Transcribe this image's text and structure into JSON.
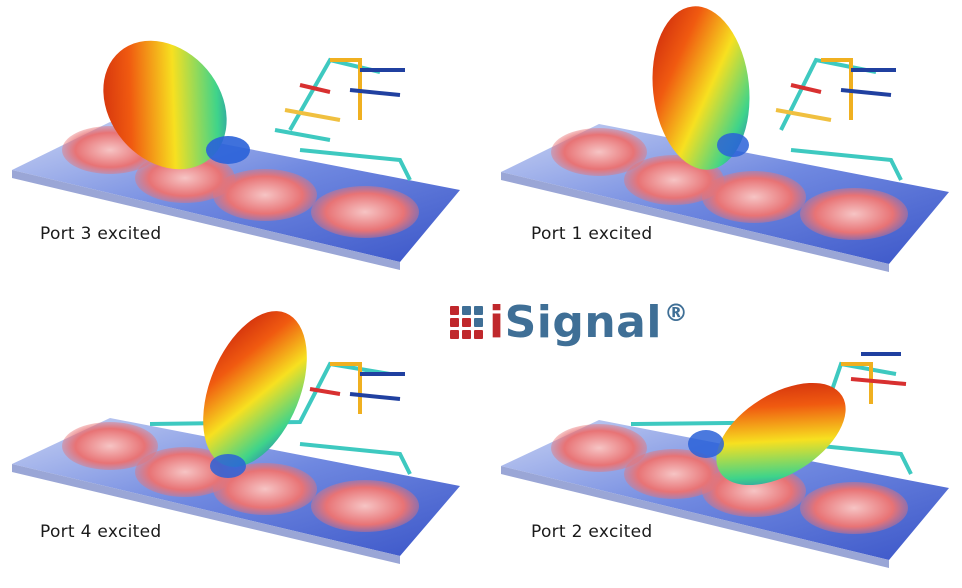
{
  "panels": [
    {
      "id": "port-3",
      "caption": "Port 3 excited"
    },
    {
      "id": "port-1",
      "caption": "Port 1 excited"
    },
    {
      "id": "port-4",
      "caption": "Port 4 excited"
    },
    {
      "id": "port-2",
      "caption": "Port 2 excited"
    }
  ],
  "logo": {
    "prefix": "i",
    "name": "Signal",
    "mark": "®"
  },
  "colors": {
    "substrate": "#5d7bdc",
    "patch_field": "#e8787a",
    "feed_line": "#3ec9c0",
    "logo_blue": "#3f6f96",
    "logo_red": "#c0282c"
  }
}
